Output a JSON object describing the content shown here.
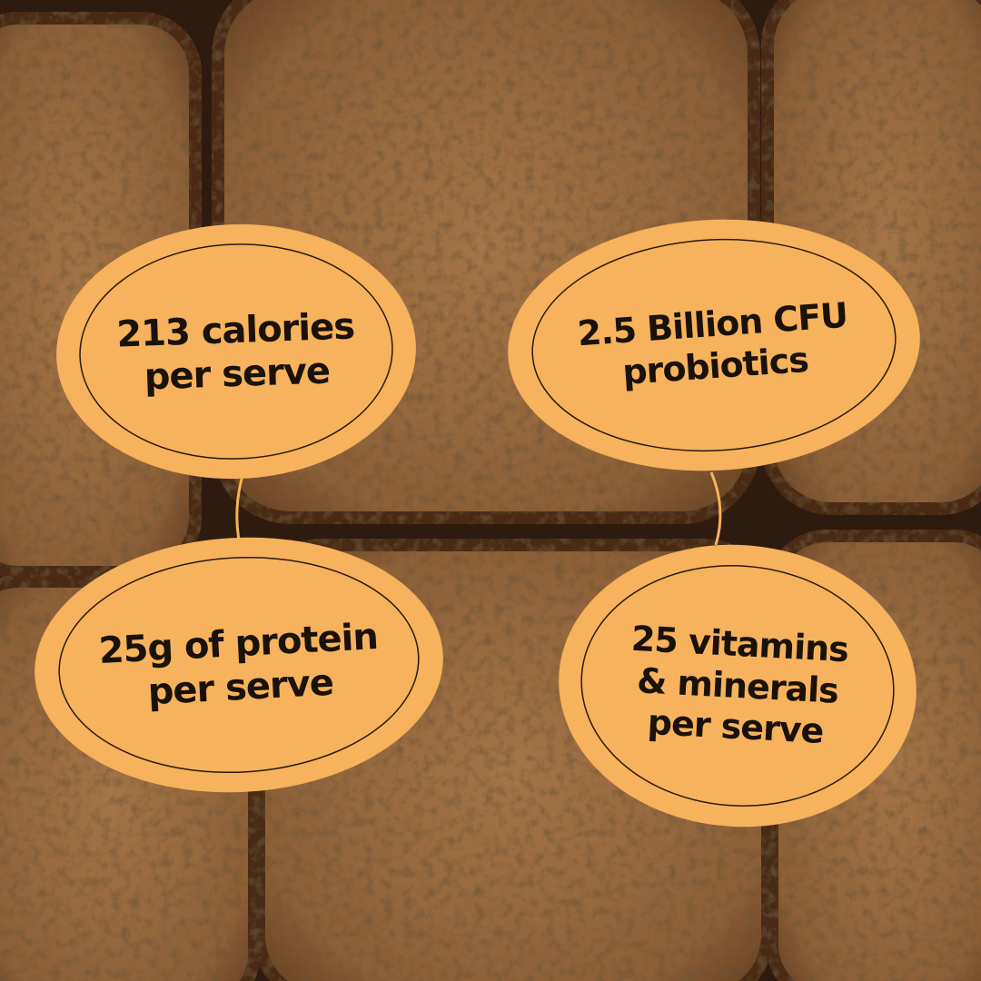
{
  "colors": {
    "badge_fill": "#f6b25c",
    "badge_stroke": "#2b1a0e",
    "badge_text": "#1a120a",
    "connector": "#f6b25c",
    "crumb": "#9a6b3e",
    "crust": "#4a2a16"
  },
  "badges": {
    "calories": {
      "lines": [
        "213 calories",
        "per serve"
      ]
    },
    "probiotics": {
      "lines": [
        "2.5 Billion CFU",
        "probiotics"
      ]
    },
    "protein": {
      "lines": [
        "25g of protein",
        "per serve"
      ]
    },
    "vitamins": {
      "lines": [
        "25 vitamins",
        "& minerals",
        "per serve"
      ]
    }
  }
}
